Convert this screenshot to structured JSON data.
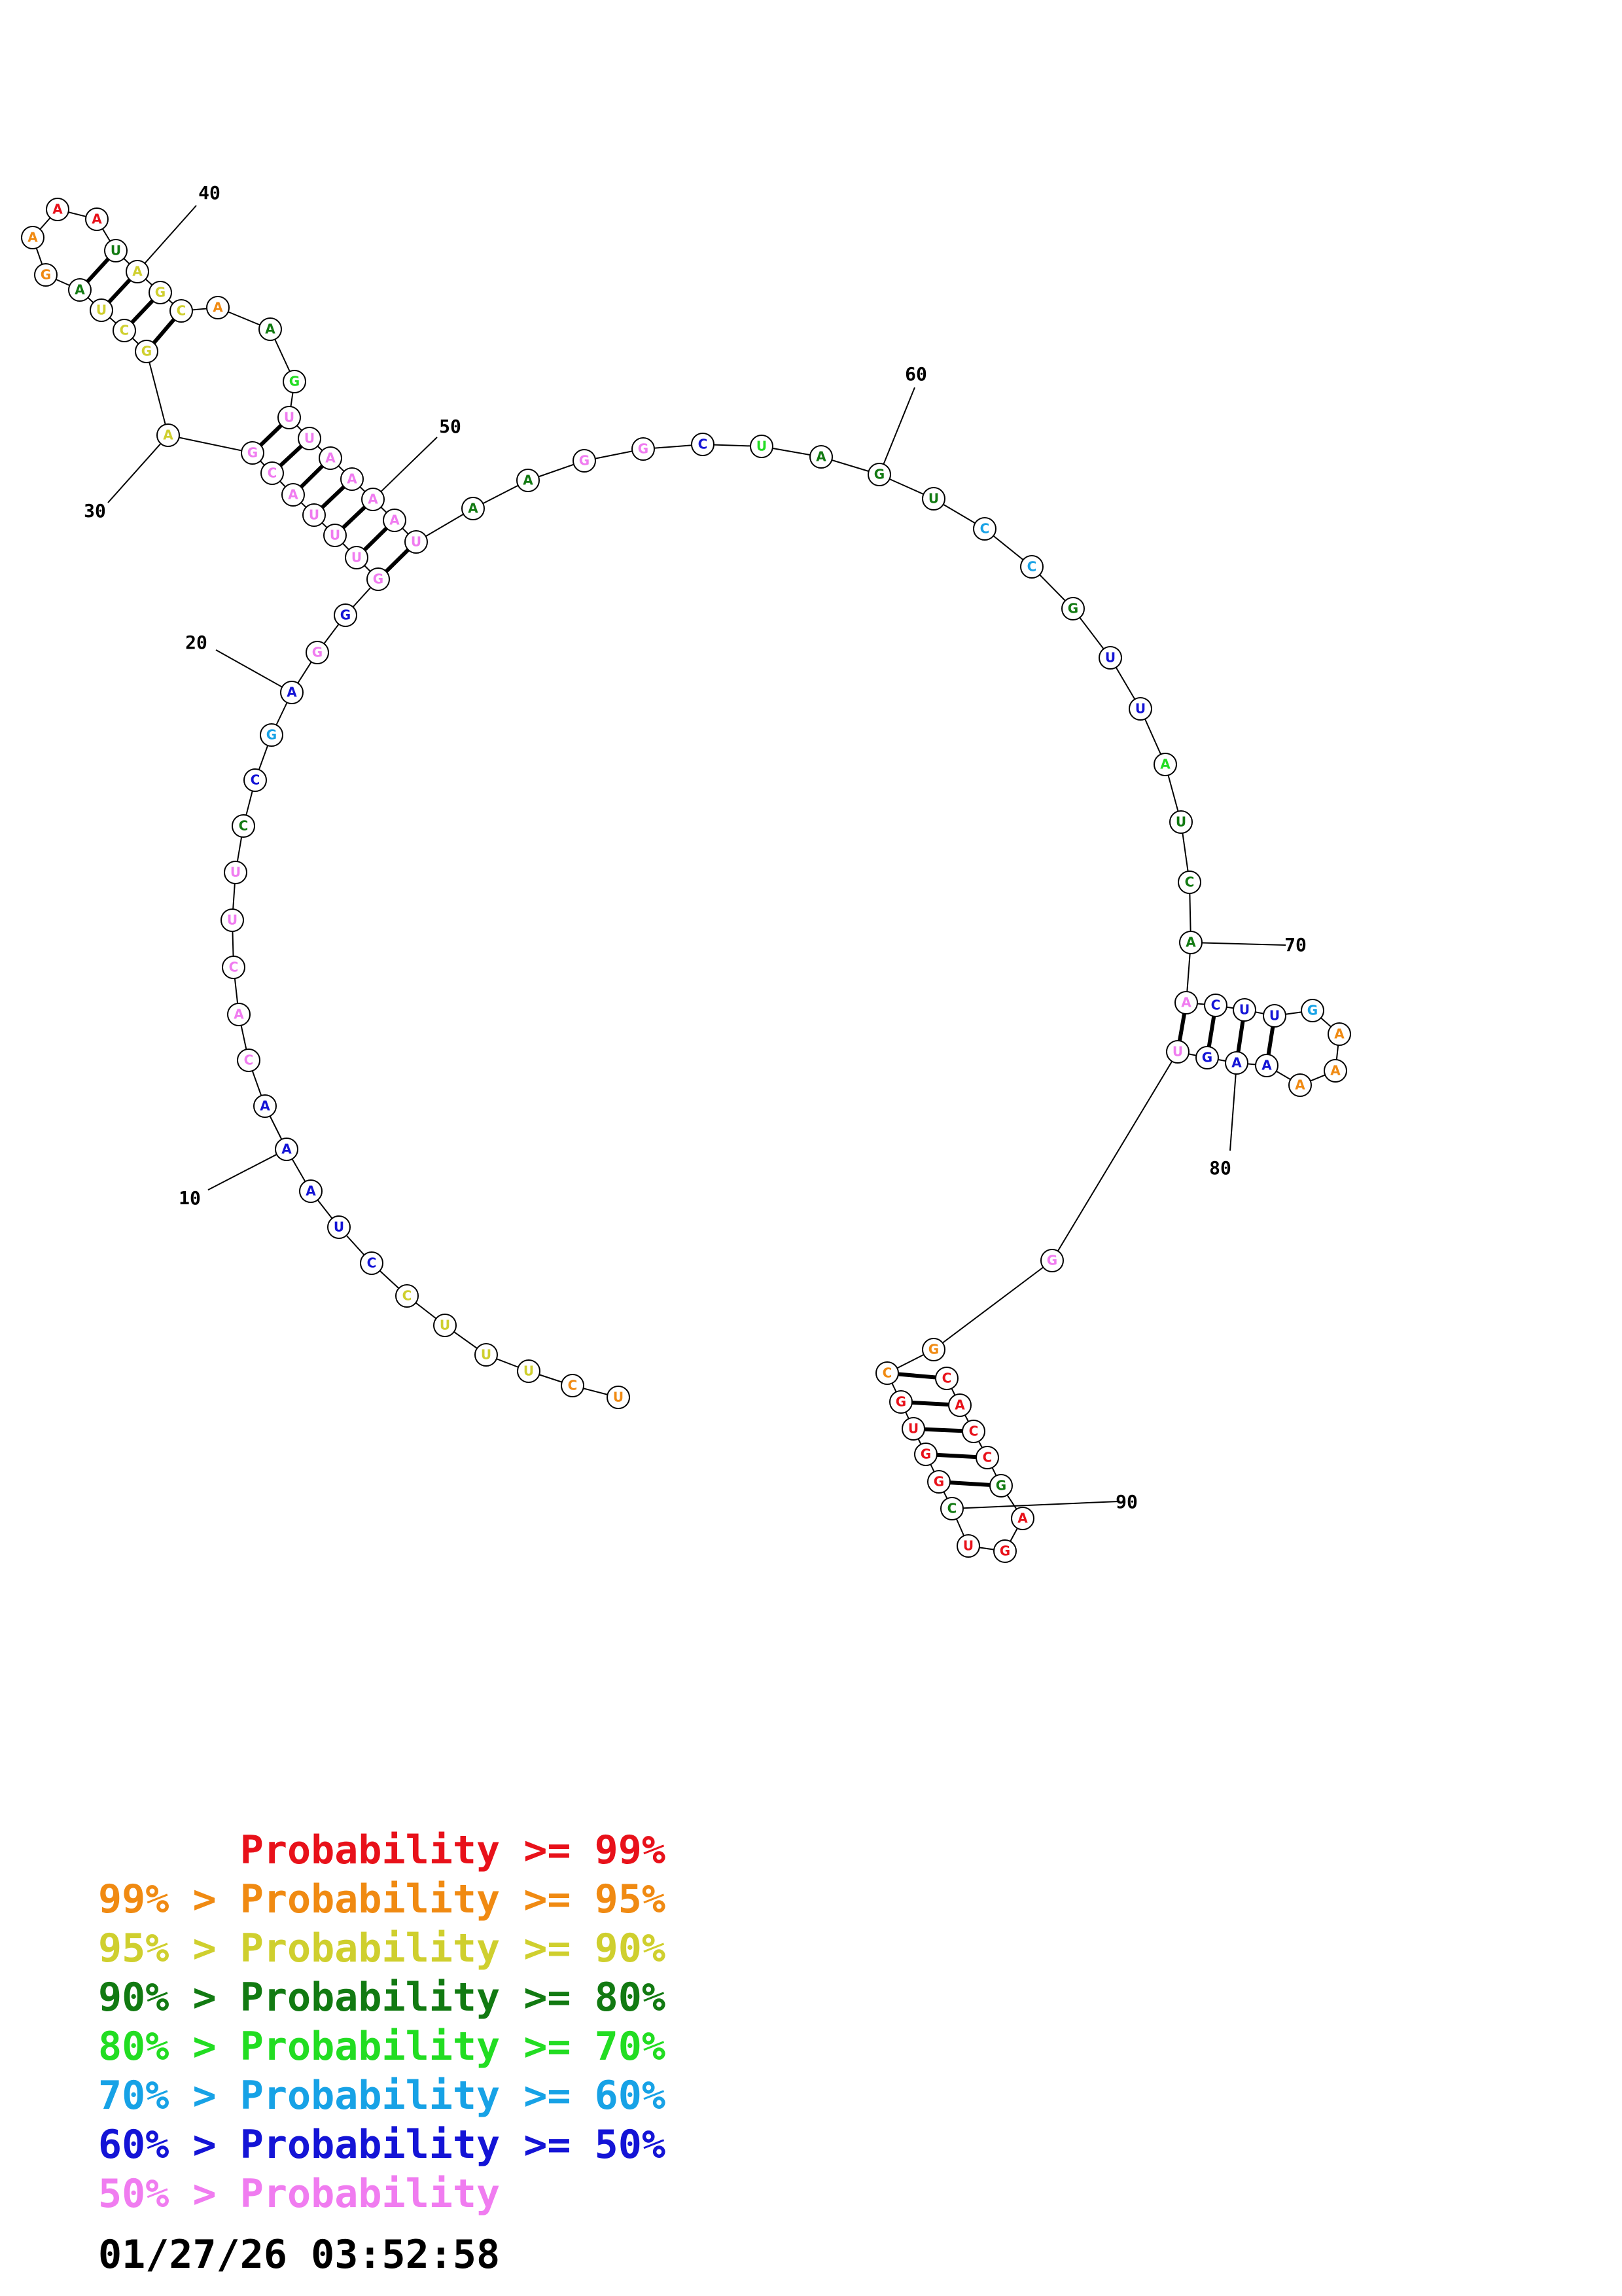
{
  "colors": {
    "p99": "#e8111a",
    "p95": "#f08a12",
    "p90": "#cfcf2e",
    "p80": "#127a12",
    "p70": "#22dd22",
    "p60": "#17a2e6",
    "p50": "#1414d6",
    "low": "#f07cf0"
  },
  "legend": [
    {
      "prefix": "",
      "text": "Probability >= 99%",
      "color": "p99"
    },
    {
      "prefix": "99% > ",
      "text": "Probability >= 95%",
      "color": "p95"
    },
    {
      "prefix": "95% > ",
      "text": "Probability >= 90%",
      "color": "p90"
    },
    {
      "prefix": "90% > ",
      "text": "Probability >= 80%",
      "color": "p80"
    },
    {
      "prefix": "80% > ",
      "text": "Probability >= 70%",
      "color": "p70"
    },
    {
      "prefix": "70% > ",
      "text": "Probability >= 60%",
      "color": "p60"
    },
    {
      "prefix": "60% > ",
      "text": "Probability >= 50%",
      "color": "p50"
    },
    {
      "prefix": "50% > ",
      "text": "Probability",
      "color": "low"
    }
  ],
  "timestamp": "01/27/26 03:52:58",
  "structure": {
    "sequence": [
      {
        "n": 1,
        "b": "U",
        "c": "p95"
      },
      {
        "n": 2,
        "b": "C",
        "c": "p95"
      },
      {
        "n": 3,
        "b": "U",
        "c": "p90"
      },
      {
        "n": 4,
        "b": "U",
        "c": "p90"
      },
      {
        "n": 5,
        "b": "U",
        "c": "p90"
      },
      {
        "n": 6,
        "b": "C",
        "c": "p90"
      },
      {
        "n": 7,
        "b": "C",
        "c": "p50"
      },
      {
        "n": 8,
        "b": "U",
        "c": "p50"
      },
      {
        "n": 9,
        "b": "A",
        "c": "p50"
      },
      {
        "n": 10,
        "b": "A",
        "c": "p50"
      },
      {
        "n": 11,
        "b": "A",
        "c": "p50"
      },
      {
        "n": 12,
        "b": "C",
        "c": "low"
      },
      {
        "n": 13,
        "b": "A",
        "c": "low"
      },
      {
        "n": 14,
        "b": "C",
        "c": "low"
      },
      {
        "n": 15,
        "b": "U",
        "c": "low"
      },
      {
        "n": 16,
        "b": "U",
        "c": "low"
      },
      {
        "n": 17,
        "b": "C",
        "c": "p80"
      },
      {
        "n": 18,
        "b": "C",
        "c": "p50"
      },
      {
        "n": 19,
        "b": "G",
        "c": "p60"
      },
      {
        "n": 20,
        "b": "A",
        "c": "p50"
      },
      {
        "n": 21,
        "b": "G",
        "c": "low"
      },
      {
        "n": 22,
        "b": "G",
        "c": "p50"
      },
      {
        "n": 23,
        "b": "G",
        "c": "low"
      },
      {
        "n": 24,
        "b": "U",
        "c": "low"
      },
      {
        "n": 25,
        "b": "U",
        "c": "low"
      },
      {
        "n": 26,
        "b": "U",
        "c": "low"
      },
      {
        "n": 27,
        "b": "A",
        "c": "low"
      },
      {
        "n": 28,
        "b": "C",
        "c": "low"
      },
      {
        "n": 29,
        "b": "G",
        "c": "low"
      },
      {
        "n": 30,
        "b": "A",
        "c": "p90"
      },
      {
        "n": 31,
        "b": "G",
        "c": "p90"
      },
      {
        "n": 32,
        "b": "C",
        "c": "p90"
      },
      {
        "n": 33,
        "b": "U",
        "c": "p90"
      },
      {
        "n": 34,
        "b": "A",
        "c": "p80"
      },
      {
        "n": 35,
        "b": "G",
        "c": "p95"
      },
      {
        "n": 36,
        "b": "A",
        "c": "p95"
      },
      {
        "n": 37,
        "b": "A",
        "c": "p99"
      },
      {
        "n": 38,
        "b": "A",
        "c": "p99"
      },
      {
        "n": 39,
        "b": "U",
        "c": "p80"
      },
      {
        "n": 40,
        "b": "A",
        "c": "p90"
      },
      {
        "n": 41,
        "b": "G",
        "c": "p90"
      },
      {
        "n": 42,
        "b": "C",
        "c": "p90"
      },
      {
        "n": 43,
        "b": "A",
        "c": "p95"
      },
      {
        "n": 44,
        "b": "A",
        "c": "p80"
      },
      {
        "n": 45,
        "b": "G",
        "c": "p70"
      },
      {
        "n": 46,
        "b": "U",
        "c": "low"
      },
      {
        "n": 47,
        "b": "U",
        "c": "low"
      },
      {
        "n": 48,
        "b": "A",
        "c": "low"
      },
      {
        "n": 49,
        "b": "A",
        "c": "low"
      },
      {
        "n": 50,
        "b": "A",
        "c": "low"
      },
      {
        "n": 51,
        "b": "A",
        "c": "low"
      },
      {
        "n": 52,
        "b": "U",
        "c": "low"
      },
      {
        "n": 53,
        "b": "A",
        "c": "p80"
      },
      {
        "n": 54,
        "b": "A",
        "c": "p80"
      },
      {
        "n": 55,
        "b": "G",
        "c": "low"
      },
      {
        "n": 56,
        "b": "G",
        "c": "low"
      },
      {
        "n": 57,
        "b": "C",
        "c": "p50"
      },
      {
        "n": 58,
        "b": "U",
        "c": "p70"
      },
      {
        "n": 59,
        "b": "A",
        "c": "p80"
      },
      {
        "n": 60,
        "b": "G",
        "c": "p80"
      },
      {
        "n": 61,
        "b": "U",
        "c": "p80"
      },
      {
        "n": 62,
        "b": "C",
        "c": "p60"
      },
      {
        "n": 63,
        "b": "C",
        "c": "p60"
      },
      {
        "n": 64,
        "b": "G",
        "c": "p80"
      },
      {
        "n": 65,
        "b": "U",
        "c": "p50"
      },
      {
        "n": 66,
        "b": "U",
        "c": "p50"
      },
      {
        "n": 67,
        "b": "A",
        "c": "p70"
      },
      {
        "n": 68,
        "b": "U",
        "c": "p80"
      },
      {
        "n": 69,
        "b": "C",
        "c": "p80"
      },
      {
        "n": 70,
        "b": "A",
        "c": "p80"
      },
      {
        "n": 71,
        "b": "A",
        "c": "low"
      },
      {
        "n": 72,
        "b": "C",
        "c": "p50"
      },
      {
        "n": 73,
        "b": "U",
        "c": "p50"
      },
      {
        "n": 74,
        "b": "U",
        "c": "p50"
      },
      {
        "n": 75,
        "b": "G",
        "c": "p60"
      },
      {
        "n": 76,
        "b": "A",
        "c": "p95"
      },
      {
        "n": 77,
        "b": "A",
        "c": "p95"
      },
      {
        "n": 78,
        "b": "A",
        "c": "p95"
      },
      {
        "n": 79,
        "b": "A",
        "c": "p50"
      },
      {
        "n": 80,
        "b": "A",
        "c": "p50"
      },
      {
        "n": 81,
        "b": "G",
        "c": "p50"
      },
      {
        "n": 82,
        "b": "U",
        "c": "low"
      },
      {
        "n": 83,
        "b": "G",
        "c": "low"
      },
      {
        "n": 84,
        "b": "G",
        "c": "p95"
      },
      {
        "n": 85,
        "b": "C",
        "c": "p95"
      },
      {
        "n": 86,
        "b": "G",
        "c": "p99"
      },
      {
        "n": 87,
        "b": "U",
        "c": "p99"
      },
      {
        "n": 88,
        "b": "G",
        "c": "p99"
      },
      {
        "n": 89,
        "b": "G",
        "c": "p99"
      },
      {
        "n": 90,
        "b": "C",
        "c": "p80"
      },
      {
        "n": 91,
        "b": "U",
        "c": "p99"
      },
      {
        "n": 92,
        "b": "G",
        "c": "p99"
      },
      {
        "n": 93,
        "b": "A",
        "c": "p99"
      },
      {
        "n": 94,
        "b": "G",
        "c": "p80"
      },
      {
        "n": 95,
        "b": "C",
        "c": "p99"
      },
      {
        "n": 96,
        "b": "C",
        "c": "p99"
      },
      {
        "n": 97,
        "b": "A",
        "c": "p99"
      },
      {
        "n": 98,
        "b": "C",
        "c": "p99"
      }
    ],
    "pairs": [
      [
        23,
        52
      ],
      [
        24,
        51
      ],
      [
        25,
        50
      ],
      [
        26,
        49
      ],
      [
        27,
        48
      ],
      [
        28,
        47
      ],
      [
        29,
        46
      ],
      [
        31,
        42
      ],
      [
        32,
        41
      ],
      [
        33,
        40
      ],
      [
        34,
        39
      ],
      [
        71,
        82
      ],
      [
        72,
        81
      ],
      [
        73,
        80
      ],
      [
        74,
        79
      ],
      [
        85,
        98
      ],
      [
        86,
        97
      ],
      [
        87,
        96
      ],
      [
        88,
        95
      ],
      [
        89,
        94
      ]
    ],
    "position_labels": [
      {
        "text": "10",
        "at": 10
      },
      {
        "text": "20",
        "at": 20
      },
      {
        "text": "30",
        "at": 30
      },
      {
        "text": "40",
        "at": 40
      },
      {
        "text": "50",
        "at": 50
      },
      {
        "text": "60",
        "at": 60
      },
      {
        "text": "70",
        "at": 70
      },
      {
        "text": "80",
        "at": 80
      },
      {
        "text": "90",
        "at": 90
      }
    ]
  }
}
